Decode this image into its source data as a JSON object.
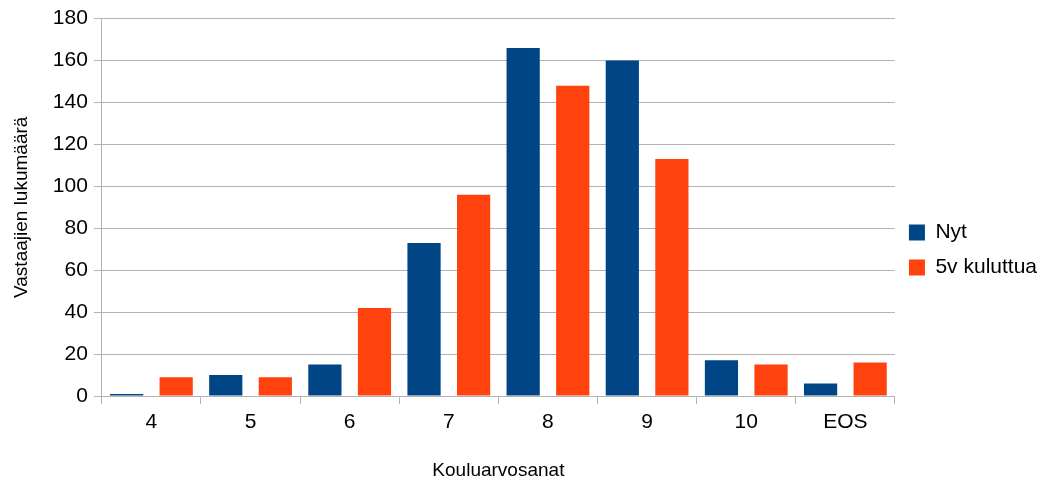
{
  "chart_data": {
    "type": "bar",
    "xlabel": "Kouluarvosanat",
    "ylabel": "Vastaajien lukumäärä",
    "categories": [
      "4",
      "5",
      "6",
      "7",
      "8",
      "9",
      "10",
      "EOS"
    ],
    "series": [
      {
        "name": "Nyt",
        "color": "#004586",
        "values": [
          1,
          10,
          15,
          73,
          166,
          160,
          17,
          6
        ]
      },
      {
        "name": "5v kuluttua",
        "color": "#ff420e",
        "values": [
          9,
          9,
          42,
          96,
          148,
          113,
          15,
          16
        ]
      }
    ],
    "ylim": [
      0,
      180
    ],
    "yticks": [
      0,
      20,
      40,
      60,
      80,
      100,
      120,
      140,
      160,
      180
    ],
    "grid": "y",
    "legend": "right"
  }
}
